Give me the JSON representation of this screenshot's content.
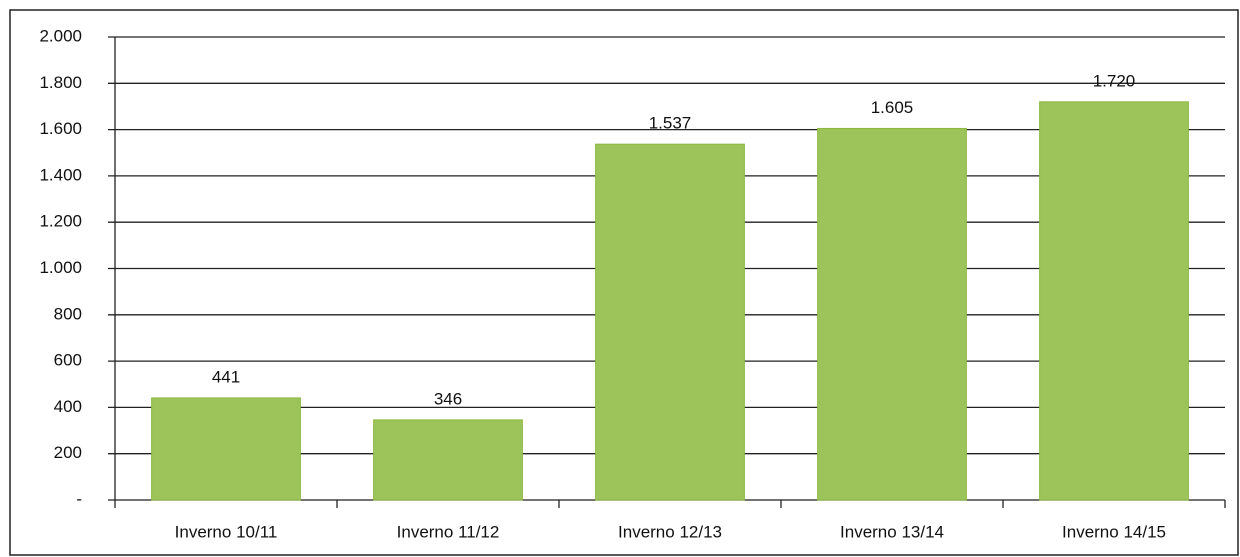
{
  "chart_data": {
    "type": "bar",
    "categories": [
      "Inverno 10/11",
      "Inverno 11/12",
      "Inverno 12/13",
      "Inverno 13/14",
      "Inverno 14/15"
    ],
    "values": [
      441,
      346,
      1537,
      1605,
      1720
    ],
    "value_labels": [
      "441",
      "346",
      "1.537",
      "1.605",
      "1.720"
    ],
    "color": "#9cc45a",
    "ylim": [
      0,
      2000
    ],
    "yticks": [
      {
        "value": 0,
        "label": "-"
      },
      200,
      400,
      600,
      800,
      {
        "value": 1000,
        "label": "1.000"
      },
      {
        "value": 1200,
        "label": "1.200"
      },
      {
        "value": 1400,
        "label": "1.400"
      },
      {
        "value": 1600,
        "label": "1.600"
      },
      {
        "value": 1800,
        "label": "1.800"
      },
      {
        "value": 2000,
        "label": "2.000"
      }
    ],
    "grid": true
  }
}
